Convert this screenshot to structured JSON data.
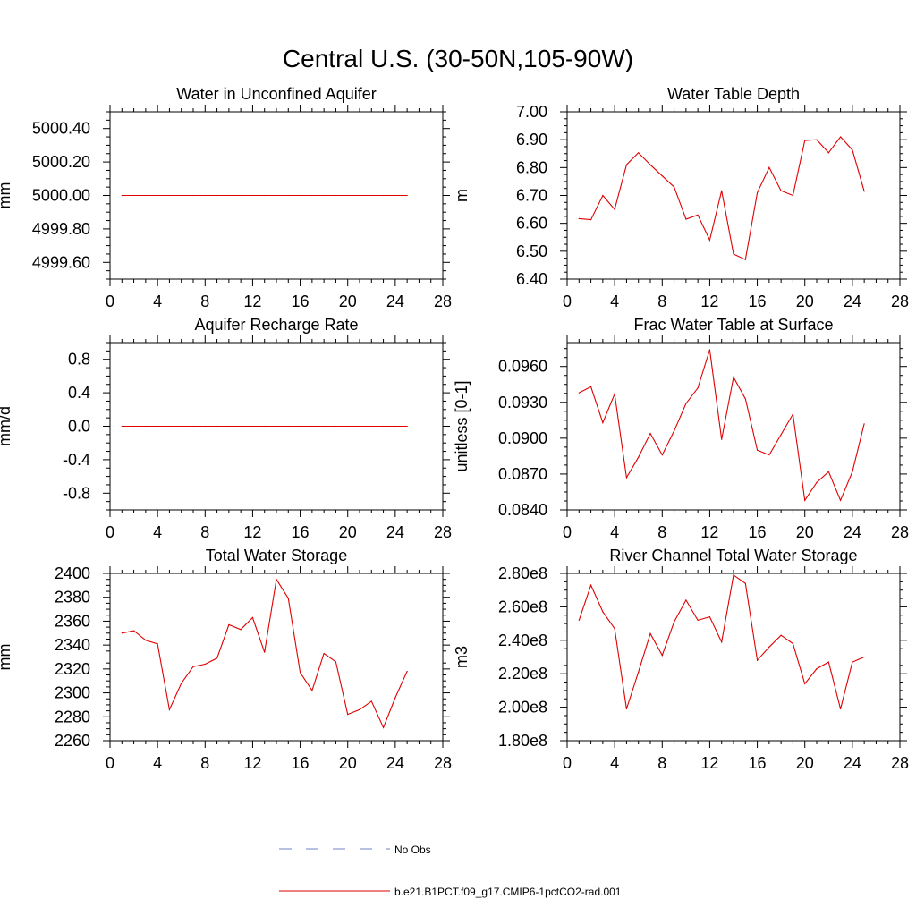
{
  "figure": {
    "title": "Central U.S. (30-50N,105-90W)"
  },
  "legend": {
    "obs_label": "No Obs",
    "model_label": "b.e21.B1PCT.f09_g17.CMIP6-1pctCO2-rad.001",
    "obs_color": "#7080c8",
    "model_color": "#e00000"
  },
  "chart_data": [
    {
      "type": "line",
      "title": "Water in Unconfined Aquifer",
      "ylabel": "mm",
      "xlim": [
        0,
        28
      ],
      "ylim": [
        4999.5,
        5000.5
      ],
      "xticks": [
        0,
        4,
        8,
        12,
        16,
        20,
        24,
        28
      ],
      "yticks": [
        4999.6,
        4999.8,
        5000.0,
        5000.2,
        5000.4
      ],
      "ytick_labels": [
        "4999.60",
        "4999.80",
        "5000.00",
        "5000.20",
        "5000.40"
      ],
      "series": [
        {
          "x": [
            1,
            2,
            3,
            4,
            5,
            6,
            7,
            8,
            9,
            10,
            11,
            12,
            13,
            14,
            15,
            16,
            17,
            18,
            19,
            20,
            21,
            22,
            23,
            24,
            25
          ],
          "values": [
            5000,
            5000,
            5000,
            5000,
            5000,
            5000,
            5000,
            5000,
            5000,
            5000,
            5000,
            5000,
            5000,
            5000,
            5000,
            5000,
            5000,
            5000,
            5000,
            5000,
            5000,
            5000,
            5000,
            5000,
            5000
          ]
        }
      ]
    },
    {
      "type": "line",
      "title": "Water Table Depth",
      "ylabel": "m",
      "xlim": [
        0,
        28
      ],
      "ylim": [
        6.4,
        7.0
      ],
      "xticks": [
        0,
        4,
        8,
        12,
        16,
        20,
        24,
        28
      ],
      "yticks": [
        6.4,
        6.5,
        6.6,
        6.7,
        6.8,
        6.9,
        7.0
      ],
      "ytick_labels": [
        "6.40",
        "6.50",
        "6.60",
        "6.70",
        "6.80",
        "6.90",
        "7.00"
      ],
      "series": [
        {
          "x": [
            1,
            2,
            3,
            4,
            5,
            6,
            7,
            8,
            9,
            10,
            11,
            12,
            13,
            14,
            15,
            16,
            17,
            18,
            19,
            20,
            21,
            22,
            23,
            24,
            25
          ],
          "values": [
            6.617,
            6.613,
            6.7,
            6.65,
            6.81,
            6.853,
            6.81,
            6.77,
            6.73,
            6.615,
            6.63,
            6.54,
            6.717,
            6.49,
            6.47,
            6.71,
            6.8,
            6.717,
            6.7,
            6.897,
            6.9,
            6.853,
            6.91,
            6.863,
            6.715
          ]
        }
      ]
    },
    {
      "type": "line",
      "title": "Aquifer Recharge Rate",
      "ylabel": "mm/d",
      "xlim": [
        0,
        28
      ],
      "ylim": [
        -1.0,
        1.0
      ],
      "xticks": [
        0,
        4,
        8,
        12,
        16,
        20,
        24,
        28
      ],
      "yticks": [
        -0.8,
        -0.4,
        0.0,
        0.4,
        0.8
      ],
      "ytick_labels": [
        "-0.8",
        "-0.4",
        "0.0",
        "0.4",
        "0.8"
      ],
      "series": [
        {
          "x": [
            1,
            2,
            3,
            4,
            5,
            6,
            7,
            8,
            9,
            10,
            11,
            12,
            13,
            14,
            15,
            16,
            17,
            18,
            19,
            20,
            21,
            22,
            23,
            24,
            25
          ],
          "values": [
            0,
            0,
            0,
            0,
            0,
            0,
            0,
            0,
            0,
            0,
            0,
            0,
            0,
            0,
            0,
            0,
            0,
            0,
            0,
            0,
            0,
            0,
            0,
            0,
            0
          ]
        }
      ]
    },
    {
      "type": "line",
      "title": "Frac Water Table at Surface",
      "ylabel": "unitless [0-1]",
      "xlim": [
        0,
        28
      ],
      "ylim": [
        0.084,
        0.098
      ],
      "xticks": [
        0,
        4,
        8,
        12,
        16,
        20,
        24,
        28
      ],
      "yticks": [
        0.084,
        0.087,
        0.09,
        0.093,
        0.096
      ],
      "ytick_labels": [
        "0.0840",
        "0.0870",
        "0.0900",
        "0.0930",
        "0.0960"
      ],
      "series": [
        {
          "x": [
            1,
            2,
            3,
            4,
            5,
            6,
            7,
            8,
            9,
            10,
            11,
            12,
            13,
            14,
            15,
            16,
            17,
            18,
            19,
            20,
            21,
            22,
            23,
            24,
            25
          ],
          "values": [
            0.0938,
            0.0943,
            0.0913,
            0.0937,
            0.0867,
            0.0884,
            0.0904,
            0.0886,
            0.0906,
            0.0929,
            0.0942,
            0.0974,
            0.0899,
            0.0951,
            0.0933,
            0.089,
            0.0886,
            0.0903,
            0.092,
            0.0848,
            0.0863,
            0.0872,
            0.0848,
            0.0872,
            0.0912
          ]
        }
      ]
    },
    {
      "type": "line",
      "title": "Total Water Storage",
      "ylabel": "mm",
      "xlim": [
        0,
        28
      ],
      "ylim": [
        2260,
        2400
      ],
      "xticks": [
        0,
        4,
        8,
        12,
        16,
        20,
        24,
        28
      ],
      "yticks": [
        2260,
        2280,
        2300,
        2320,
        2340,
        2360,
        2380,
        2400
      ],
      "ytick_labels": [
        "2260",
        "2280",
        "2300",
        "2320",
        "2340",
        "2360",
        "2380",
        "2400"
      ],
      "series": [
        {
          "x": [
            1,
            2,
            3,
            4,
            5,
            6,
            7,
            8,
            9,
            10,
            11,
            12,
            13,
            14,
            15,
            16,
            17,
            18,
            19,
            20,
            21,
            22,
            23,
            24,
            25
          ],
          "values": [
            2350,
            2352,
            2344,
            2341,
            2286,
            2308,
            2322,
            2324,
            2329,
            2357,
            2353,
            2363,
            2334,
            2395,
            2379,
            2317,
            2302,
            2333,
            2326,
            2282,
            2286,
            2293,
            2271,
            2296,
            2318
          ]
        }
      ]
    },
    {
      "type": "line",
      "title": "River Channel Total Water Storage",
      "ylabel": "m3",
      "xlim": [
        0,
        28
      ],
      "ylim": [
        180000000,
        280000000
      ],
      "xticks": [
        0,
        4,
        8,
        12,
        16,
        20,
        24,
        28
      ],
      "yticks": [
        180000000,
        200000000,
        220000000,
        240000000,
        260000000,
        280000000
      ],
      "ytick_labels": [
        "1.80e8",
        "2.00e8",
        "2.20e8",
        "2.40e8",
        "2.60e8",
        "2.80e8"
      ],
      "series": [
        {
          "x": [
            1,
            2,
            3,
            4,
            5,
            6,
            7,
            8,
            9,
            10,
            11,
            12,
            13,
            14,
            15,
            16,
            17,
            18,
            19,
            20,
            21,
            22,
            23,
            24,
            25
          ],
          "values": [
            252000000,
            273000000,
            257000000,
            247000000,
            199000000,
            221000000,
            244000000,
            231000000,
            251000000,
            264000000,
            252000000,
            254000000,
            239000000,
            279000000,
            274000000,
            228000000,
            236000000,
            243000000,
            238000000,
            214000000,
            223000000,
            227000000,
            199000000,
            227000000,
            230000000
          ]
        }
      ]
    }
  ]
}
